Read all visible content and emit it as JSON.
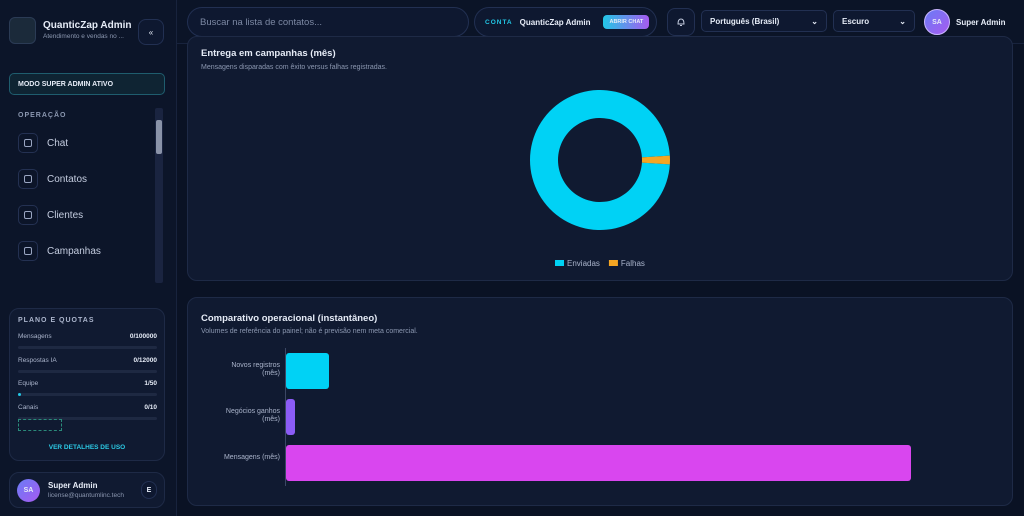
{
  "sidebar": {
    "brand": {
      "name": "QuanticZap Admin",
      "tagline": "Atendimento e vendas no ..."
    },
    "collapse": "«",
    "mode_badge": "MODO SUPER ADMIN ATIVO",
    "section": "OPERAÇÃO",
    "nav": [
      "Chat",
      "Contatos",
      "Clientes",
      "Campanhas"
    ],
    "plan": {
      "title": "PLANO E QUOTAS",
      "quotas": [
        {
          "label": "Mensagens",
          "value": "0/100000"
        },
        {
          "label": "Respostas IA",
          "value": "0/12000"
        },
        {
          "label": "Equipe",
          "value": "1/50"
        },
        {
          "label": "Canais",
          "value": "0/10"
        }
      ],
      "link": "VER DETALHES DE USO"
    },
    "user": {
      "initials": "SA",
      "name": "Super Admin",
      "email": "license@quantumlinc.tech",
      "action": "E"
    }
  },
  "topbar": {
    "search_placeholder": "Buscar na lista de contatos...",
    "account_label": "CONTA",
    "account_name": "QuanticZap Admin",
    "open_chat": "ABRIR CHAT",
    "language": "Português (Brasil)",
    "theme": "Escuro",
    "user_initials": "SA",
    "user_name": "Super Admin"
  },
  "chart_data": [
    {
      "type": "donut",
      "title": "Entrega em campanhas (mês)",
      "subtitle": "Mensagens disparadas com êxito versus falhas registradas.",
      "categories": [
        "Enviadas",
        "Falhas"
      ],
      "values": [
        98,
        2
      ],
      "colors": [
        "#00d2f5",
        "#f5a623"
      ]
    },
    {
      "type": "bar",
      "orientation": "horizontal",
      "title": "Comparativo operacional (instantâneo)",
      "subtitle": "Volumes de referência do painel; não é previsão nem meta comercial.",
      "categories": [
        "Novos registros (mês)",
        "Negócios ganhos (mês)",
        "Mensagens (mês)"
      ],
      "values": [
        6,
        1.3,
        88
      ],
      "colors": [
        "#00d2f5",
        "#8b5cf6",
        "#d946ef"
      ],
      "xlim": [
        0,
        100
      ]
    }
  ]
}
